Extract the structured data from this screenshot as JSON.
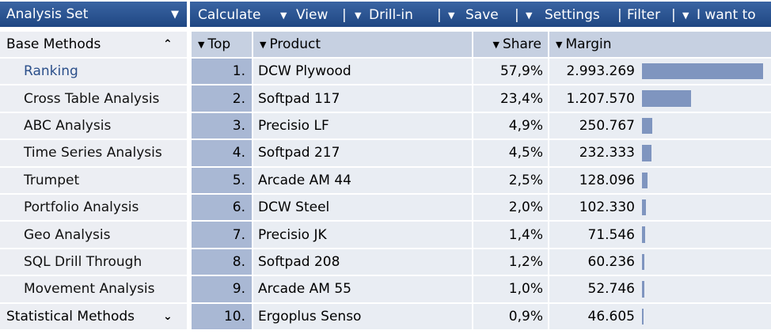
{
  "sidebar": {
    "title": "Analysis Set",
    "sections": [
      "Base Methods",
      "Statistical Methods"
    ],
    "items": [
      "Ranking",
      "Cross Table Analysis",
      "ABC Analysis",
      "Time Series Analysis",
      "Trumpet",
      "Portfolio Analysis",
      "Geo Analysis",
      "SQL Drill Through",
      "Movement Analysis"
    ]
  },
  "toolbar": [
    "Calculate",
    "View",
    "Drill-in",
    "Save",
    "Settings",
    "Filter",
    "I want to"
  ],
  "table": {
    "columns": [
      "Top",
      "Product",
      "Share",
      "Margin"
    ],
    "rows": [
      {
        "rank": "1.",
        "product": "DCW Plywood",
        "share": "57,9%",
        "margin": {
          "value": 2993269,
          "label": "2.993.269"
        }
      },
      {
        "rank": "2.",
        "product": "Softpad 117",
        "share": "23,4%",
        "margin": {
          "value": 1207570,
          "label": "1.207.570"
        }
      },
      {
        "rank": "3.",
        "product": "Precisio LF",
        "share": "4,9%",
        "margin": {
          "value": 250767,
          "label": "250.767"
        }
      },
      {
        "rank": "4.",
        "product": "Softpad 217",
        "share": "4,5%",
        "margin": {
          "value": 232333,
          "label": "232.333"
        }
      },
      {
        "rank": "5.",
        "product": "Arcade AM 44",
        "share": "2,5%",
        "margin": {
          "value": 128096,
          "label": "128.096"
        }
      },
      {
        "rank": "6.",
        "product": "DCW Steel",
        "share": "2,0%",
        "margin": {
          "value": 102330,
          "label": "102.330"
        }
      },
      {
        "rank": "7.",
        "product": "Precisio JK",
        "share": "1,4%",
        "margin": {
          "value": 71546,
          "label": "71.546"
        }
      },
      {
        "rank": "8.",
        "product": "Softpad 208",
        "share": "1,2%",
        "margin": {
          "value": 60236,
          "label": "60.236"
        }
      },
      {
        "rank": "9.",
        "product": "Arcade AM 55",
        "share": "1,0%",
        "margin": {
          "value": 52746,
          "label": "52.746"
        }
      },
      {
        "rank": "10.",
        "product": "Ergoplus Senso",
        "share": "0,9%",
        "margin": {
          "value": 46605,
          "label": "46.605"
        }
      }
    ]
  }
}
